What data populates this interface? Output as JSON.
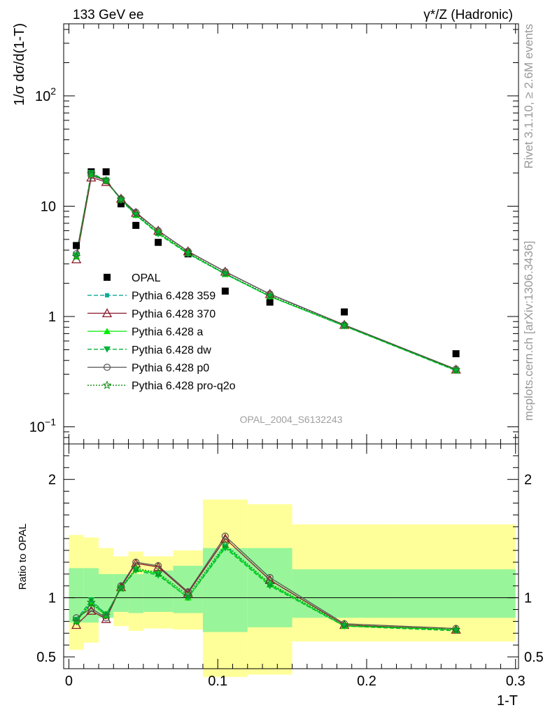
{
  "header": {
    "left_label": "133 GeV ee",
    "right_label": "γ*/Z (Hadronic)"
  },
  "side_labels": {
    "rivet": "Rivet 3.1.10, ≥ 2.6M events",
    "mcplots": "mcplots.cern.ch [arXiv:1306.3436]"
  },
  "watermark": "OPAL_2004_S6132243",
  "chart_data": [
    {
      "type": "scatter",
      "panel": "main",
      "ylabel": "1/σ dσ/d(1-T)",
      "yscale": "log",
      "ylim": [
        0.07,
        450
      ],
      "xlim": [
        -0.0035,
        0.302
      ],
      "yticks": [
        {
          "value": 0.1,
          "label": "10",
          "exp": "−1"
        },
        {
          "value": 1,
          "label": "1",
          "exp": ""
        },
        {
          "value": 10,
          "label": "10",
          "exp": ""
        },
        {
          "value": 100,
          "label": "10",
          "exp": "2"
        }
      ],
      "x": [
        0.005,
        0.015,
        0.025,
        0.035,
        0.045,
        0.06,
        0.08,
        0.105,
        0.135,
        0.185,
        0.26
      ],
      "series": [
        {
          "name": "OPAL",
          "color": "#000000",
          "marker": "square-filled",
          "line": "none",
          "values": [
            4.4,
            20.5,
            20.5,
            10.5,
            6.7,
            4.7,
            3.7,
            1.7,
            1.35,
            1.1,
            0.46
          ]
        },
        {
          "name": "Pythia 6.428 359",
          "color": "#11a99a",
          "marker": "square-small",
          "line": "dashed",
          "values": [
            3.6,
            19.8,
            17.2,
            11.4,
            8.4,
            5.7,
            3.7,
            2.45,
            1.52,
            0.82,
            0.325
          ]
        },
        {
          "name": "Pythia 6.428 370",
          "color": "#8b1a2b",
          "marker": "triangle-open",
          "line": "solid",
          "values": [
            3.3,
            18.2,
            16.6,
            11.7,
            8.7,
            6.0,
            3.9,
            2.55,
            1.6,
            0.84,
            0.33
          ]
        },
        {
          "name": "Pythia 6.428 a",
          "color": "#00ee00",
          "marker": "triangle-filled",
          "line": "solid",
          "values": [
            3.5,
            19.5,
            17.0,
            11.5,
            8.3,
            5.7,
            3.75,
            2.42,
            1.52,
            0.82,
            0.325
          ]
        },
        {
          "name": "Pythia 6.428 dw",
          "color": "#00b33c",
          "marker": "triangle-down",
          "line": "dashed",
          "values": [
            3.6,
            20.0,
            17.2,
            11.3,
            8.3,
            5.6,
            3.7,
            2.42,
            1.52,
            0.82,
            0.323
          ]
        },
        {
          "name": "Pythia 6.428 p0",
          "color": "#555555",
          "marker": "circle-open",
          "line": "solid",
          "values": [
            3.7,
            19.0,
            17.0,
            11.7,
            8.8,
            6.0,
            3.9,
            2.55,
            1.6,
            0.84,
            0.333
          ]
        },
        {
          "name": "Pythia 6.428 pro-q2o",
          "color": "#118811",
          "marker": "star",
          "line": "dotted",
          "values": [
            3.5,
            19.6,
            17.1,
            11.5,
            8.5,
            5.8,
            3.8,
            2.45,
            1.55,
            0.83,
            0.328
          ]
        }
      ]
    },
    {
      "type": "line",
      "panel": "ratio",
      "xlabel": "1-T",
      "ylabel": "Ratio to OPAL",
      "ylim": [
        0.4,
        2.3
      ],
      "xlim": [
        -0.0035,
        0.302
      ],
      "xticks": [
        0,
        0.1,
        0.2,
        0.3
      ],
      "xticklabels": [
        "0",
        "0.1",
        "0.2",
        "0.3"
      ],
      "yticks": [
        0.5,
        1,
        2
      ],
      "yticklabels": [
        "0.5",
        "1",
        "2"
      ],
      "x": [
        0.005,
        0.015,
        0.025,
        0.035,
        0.045,
        0.06,
        0.08,
        0.105,
        0.135,
        0.185,
        0.26
      ],
      "bands": {
        "bins": [
          [
            0,
            0.01
          ],
          [
            0.01,
            0.02
          ],
          [
            0.02,
            0.03
          ],
          [
            0.03,
            0.04
          ],
          [
            0.04,
            0.05
          ],
          [
            0.05,
            0.07
          ],
          [
            0.07,
            0.09
          ],
          [
            0.09,
            0.12
          ],
          [
            0.12,
            0.15
          ],
          [
            0.15,
            0.22
          ],
          [
            0.22,
            0.3
          ]
        ],
        "stat": [
          [
            0.79,
            1.25
          ],
          [
            0.79,
            1.25
          ],
          [
            0.83,
            1.2
          ],
          [
            0.88,
            1.2
          ],
          [
            0.87,
            1.2
          ],
          [
            0.88,
            1.23
          ],
          [
            0.87,
            1.27
          ],
          [
            0.71,
            1.42
          ],
          [
            0.75,
            1.42
          ],
          [
            0.83,
            1.24
          ],
          [
            0.83,
            1.24
          ]
        ],
        "syst": [
          [
            0.56,
            1.53
          ],
          [
            0.62,
            1.51
          ],
          [
            0.85,
            1.42
          ],
          [
            0.76,
            1.35
          ],
          [
            0.72,
            1.39
          ],
          [
            0.74,
            1.35
          ],
          [
            0.73,
            1.4
          ],
          [
            0.33,
            1.83
          ],
          [
            0.35,
            1.79
          ],
          [
            0.63,
            1.62
          ],
          [
            0.63,
            1.62
          ]
        ],
        "stat_color": "#99f599",
        "syst_color": "#ffff99"
      },
      "series": [
        {
          "name": "Pythia 6.428 359",
          "values": [
            0.82,
            0.97,
            0.86,
            1.08,
            1.24,
            1.2,
            1.0,
            1.44,
            1.11,
            0.76,
            0.73
          ]
        },
        {
          "name": "Pythia 6.428 370",
          "values": [
            0.77,
            0.89,
            0.82,
            1.09,
            1.29,
            1.26,
            1.04,
            1.5,
            1.15,
            0.77,
            0.73
          ]
        },
        {
          "name": "Pythia 6.428 a",
          "values": [
            0.8,
            0.95,
            0.85,
            1.08,
            1.24,
            1.2,
            1.0,
            1.43,
            1.11,
            0.76,
            0.73
          ]
        },
        {
          "name": "Pythia 6.428 dw",
          "values": [
            0.81,
            0.98,
            0.86,
            1.08,
            1.23,
            1.19,
            1.0,
            1.42,
            1.1,
            0.76,
            0.72
          ]
        },
        {
          "name": "Pythia 6.428 p0",
          "values": [
            0.83,
            0.91,
            0.83,
            1.1,
            1.3,
            1.27,
            1.05,
            1.52,
            1.17,
            0.78,
            0.74
          ]
        },
        {
          "name": "Pythia 6.428 pro-q2o",
          "values": [
            0.8,
            0.96,
            0.85,
            1.08,
            1.25,
            1.21,
            1.02,
            1.45,
            1.12,
            0.77,
            0.73
          ]
        }
      ]
    }
  ]
}
